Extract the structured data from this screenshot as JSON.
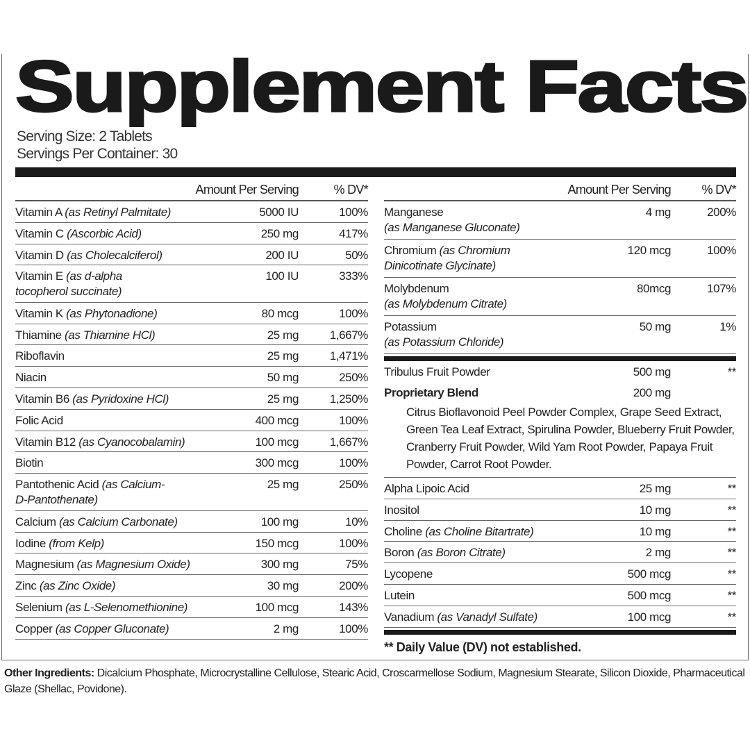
{
  "title": "Supplement Facts",
  "serving_size": "Serving Size: 2 Tablets",
  "servings_per_container": "Servings Per Container: 30",
  "header": {
    "amount": "Amount Per Serving",
    "dv": "% DV*"
  },
  "left_rows": [
    {
      "name": "Vitamin A",
      "form": "(as Retinyl Palmitate)",
      "amount": "5000 IU",
      "dv": "100%"
    },
    {
      "name": "Vitamin C",
      "form": "(Ascorbic Acid)",
      "amount": "250 mg",
      "dv": "417%"
    },
    {
      "name": "Vitamin D",
      "form": "(as Cholecalciferol)",
      "amount": "200 IU",
      "dv": "50%"
    },
    {
      "name": "Vitamin E",
      "form": "(as d-alpha\ntocopherol succinate)",
      "amount": "100 IU",
      "dv": "333%"
    },
    {
      "name": "Vitamin K",
      "form": "(as Phytonadione)",
      "amount": "80 mcg",
      "dv": "100%"
    },
    {
      "name": "Thiamine",
      "form": "(as Thiamine HCl)",
      "amount": "25 mg",
      "dv": "1,667%"
    },
    {
      "name": "Riboflavin",
      "form": "",
      "amount": "25 mg",
      "dv": "1,471%"
    },
    {
      "name": "Niacin",
      "form": "",
      "amount": "50 mg",
      "dv": "250%"
    },
    {
      "name": "Vitamin B6",
      "form": "(as Pyridoxine HCl)",
      "amount": "25 mg",
      "dv": "1,250%"
    },
    {
      "name": "Folic Acid",
      "form": "",
      "amount": "400 mcg",
      "dv": "100%"
    },
    {
      "name": "Vitamin B12",
      "form": "(as Cyanocobalamin)",
      "amount": "100 mcg",
      "dv": "1,667%"
    },
    {
      "name": "Biotin",
      "form": "",
      "amount": "300 mcg",
      "dv": "100%"
    },
    {
      "name": "Pantothenic Acid",
      "form": "(as Calcium-\nD-Pantothenate)",
      "amount": "25 mg",
      "dv": "250%"
    },
    {
      "name": "Calcium",
      "form": "(as Calcium Carbonate)",
      "amount": "100 mg",
      "dv": "10%"
    },
    {
      "name": "Iodine",
      "form": "(from Kelp)",
      "amount": "150 mcg",
      "dv": "100%"
    },
    {
      "name": "Magnesium",
      "form": "(as Magnesium Oxide)",
      "amount": "300 mg",
      "dv": "75%"
    },
    {
      "name": "Zinc",
      "form": "(as Zinc Oxide)",
      "amount": "30 mg",
      "dv": "200%"
    },
    {
      "name": "Selenium",
      "form": "(as L-Selenomethionine)",
      "amount": "100 mcg",
      "dv": "143%"
    },
    {
      "name": "Copper",
      "form": "(as Copper Gluconate)",
      "amount": "2 mg",
      "dv": "100%"
    }
  ],
  "right_rows_top": [
    {
      "name": "Manganese\n",
      "form": "(as Manganese Gluconate)",
      "amount": "4 mg",
      "dv": "200%"
    },
    {
      "name": "Chromium",
      "form": "(as Chromium\nDinicotinate Glycinate)",
      "amount": "120 mcg",
      "dv": "100%"
    },
    {
      "name": "Molybdenum\n",
      "form": "(as Molybdenum Citrate)",
      "amount": "80mcg",
      "dv": "107%"
    },
    {
      "name": "Potassium\n",
      "form": "(as Potassium Chloride)",
      "amount": "50 mg",
      "dv": "1%"
    }
  ],
  "tribulus": {
    "name": "Tribulus Fruit Powder",
    "amount": "500 mg",
    "dv": "**"
  },
  "blend": {
    "name": "Proprietary Blend",
    "amount": "200 mg",
    "ingredients": "Citrus Bioflavonoid Peel Powder Complex, Grape Seed Extract, Green Tea Leaf Extract, Spirulina Powder, Blueberry Fruit Powder, Cranberry Fruit Powder, Wild Yam Root Powder, Papaya Fruit Powder, Carrot Root Powder."
  },
  "right_rows_bottom": [
    {
      "name": "Alpha Lipoic Acid",
      "form": "",
      "amount": "25 mg",
      "dv": "**"
    },
    {
      "name": "Inositol",
      "form": "",
      "amount": "10 mg",
      "dv": "**"
    },
    {
      "name": "Choline",
      "form": "(as Choline Bitartrate)",
      "amount": "10 mg",
      "dv": "**"
    },
    {
      "name": "Boron",
      "form": "(as Boron Citrate)",
      "amount": "2 mg",
      "dv": "**"
    },
    {
      "name": "Lycopene",
      "form": "",
      "amount": "500 mcg",
      "dv": "**"
    },
    {
      "name": "Lutein",
      "form": "",
      "amount": "500 mcg",
      "dv": "**"
    },
    {
      "name": "Vanadium",
      "form": "(as Vanadyl Sulfate)",
      "amount": "100 mcg",
      "dv": "**"
    }
  ],
  "footnote": "** Daily Value (DV) not established.",
  "other_ingredients": {
    "label": "Other Ingredients:",
    "text": " Dicalcium Phosphate, Microcrystalline Cellulose, Stearic Acid, Croscarmellose Sodium, Magnesium Stearate, Silicon Dioxide, Pharmaceutical Glaze (Shellac, Povidone)."
  }
}
